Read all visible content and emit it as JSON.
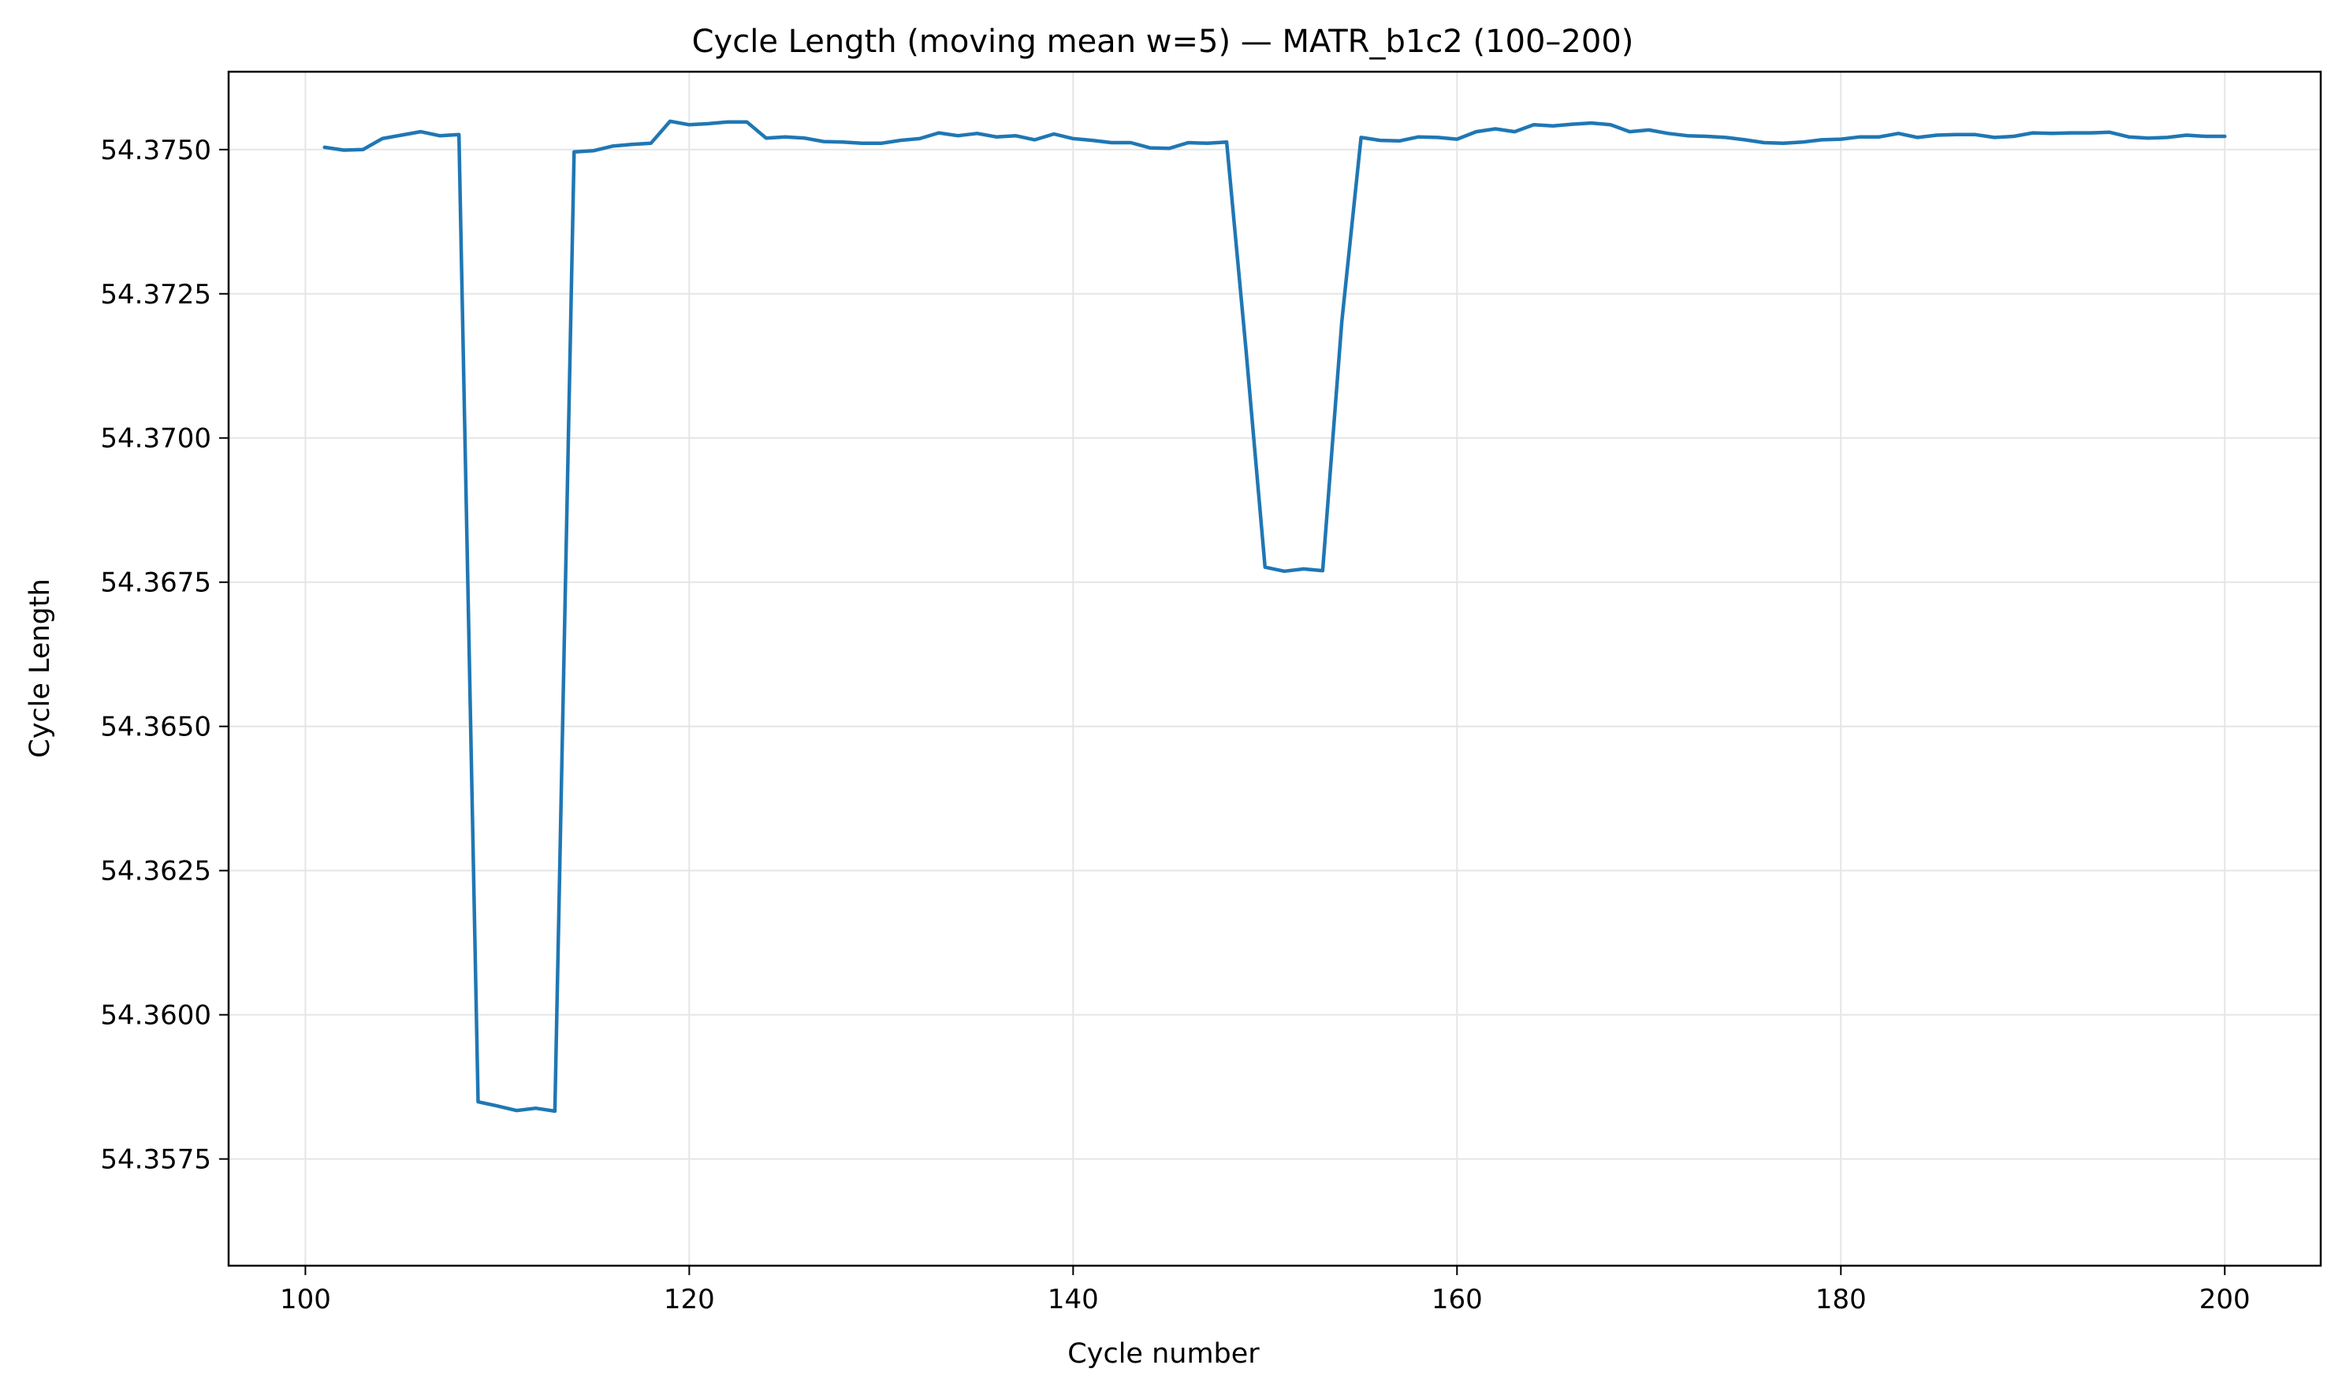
{
  "chart_data": {
    "type": "line",
    "title": "Cycle Length (moving mean w=5) — MATR_b1c2 (100–200)",
    "xlabel": "Cycle number",
    "ylabel": "Cycle Length",
    "xlim": [
      96,
      205
    ],
    "ylim": [
      54.35565,
      54.37635
    ],
    "xticks": [
      100,
      120,
      140,
      160,
      180,
      200
    ],
    "xtick_labels": [
      "100",
      "120",
      "140",
      "160",
      "180",
      "200"
    ],
    "yticks": [
      54.3575,
      54.36,
      54.3625,
      54.365,
      54.3675,
      54.37,
      54.3725,
      54.375
    ],
    "ytick_labels": [
      "54.3575",
      "54.3600",
      "54.3625",
      "54.3650",
      "54.3675",
      "54.3700",
      "54.3725",
      "54.3750"
    ],
    "grid": true,
    "legend": "none",
    "colors": {
      "series": "#1f77b4"
    },
    "series": [
      {
        "x": [
          101,
          102,
          103,
          104,
          105,
          106,
          107,
          108,
          109,
          110,
          111,
          112,
          113,
          114,
          115,
          116,
          117,
          118,
          119,
          120,
          121,
          122,
          123,
          124,
          125,
          126,
          127,
          128,
          129,
          130,
          131,
          132,
          133,
          134,
          135,
          136,
          137,
          138,
          139,
          140,
          141,
          142,
          143,
          144,
          145,
          146,
          147,
          148,
          149,
          150,
          151,
          152,
          153,
          154,
          155,
          156,
          157,
          158,
          159,
          160,
          161,
          162,
          163,
          164,
          165,
          166,
          167,
          168,
          169,
          170,
          171,
          172,
          173,
          174,
          175,
          176,
          177,
          178,
          179,
          180,
          181,
          182,
          183,
          184,
          185,
          186,
          187,
          188,
          189,
          190,
          191,
          192,
          193,
          194,
          195,
          196,
          197,
          198,
          199,
          200
        ],
        "values": [
          54.37504,
          54.37499,
          54.375,
          54.37519,
          54.37525,
          54.37531,
          54.37524,
          54.37526,
          54.35849,
          54.35842,
          54.35834,
          54.35838,
          54.35833,
          54.37496,
          54.37498,
          54.37506,
          54.37509,
          54.37511,
          54.37549,
          54.37543,
          54.37545,
          54.37548,
          54.37548,
          54.3752,
          54.37522,
          54.3752,
          54.37514,
          54.37513,
          54.37511,
          54.37511,
          54.37516,
          54.37519,
          54.37529,
          54.37524,
          54.37528,
          54.37522,
          54.37524,
          54.37517,
          54.37527,
          54.37519,
          54.37516,
          54.37512,
          54.37512,
          54.37503,
          54.37502,
          54.37512,
          54.37511,
          54.37513,
          54.37155,
          54.36776,
          54.36769,
          54.36773,
          54.3677,
          54.37202,
          54.37521,
          54.37516,
          54.37515,
          54.37522,
          54.37521,
          54.37518,
          54.37531,
          54.37536,
          54.37531,
          54.37543,
          54.37541,
          54.37544,
          54.37546,
          54.37543,
          54.37531,
          54.37534,
          54.37528,
          54.37524,
          54.37523,
          54.37521,
          54.37517,
          54.37512,
          54.37511,
          54.37513,
          54.37517,
          54.37518,
          54.37522,
          54.37522,
          54.37528,
          54.37521,
          54.37525,
          54.37526,
          54.37526,
          54.37521,
          54.37523,
          54.37529,
          54.37528,
          54.37529,
          54.37529,
          54.3753,
          54.37522,
          54.3752,
          54.37521,
          54.37525,
          54.37523,
          54.37523
        ]
      }
    ]
  }
}
